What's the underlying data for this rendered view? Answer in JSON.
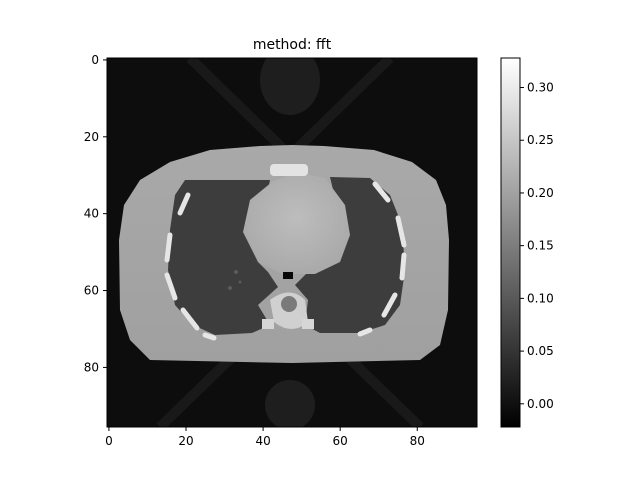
{
  "title": "method: fft",
  "chart_data": {
    "type": "heatmap",
    "title": "method: fft",
    "colormap": "gray",
    "image_shape": [
      96,
      96
    ],
    "image_content": "reconstructed axial chest CT slice: body cross-section with two dark lungs, bright ribs, spine and a bright central heart region",
    "x_ticks": [
      0,
      20,
      40,
      60,
      80
    ],
    "y_ticks": [
      0,
      20,
      40,
      60,
      80
    ],
    "xlim": [
      -0.5,
      95.5
    ],
    "ylim": [
      95.5,
      -0.5
    ],
    "colorbar": {
      "range": [
        -0.022,
        0.328
      ],
      "ticks": [
        "0.30",
        "0.25",
        "0.20",
        "0.15",
        "0.10",
        "0.05",
        "0.00"
      ],
      "tick_values": [
        0.3,
        0.25,
        0.2,
        0.15,
        0.1,
        0.05,
        0.0
      ]
    }
  },
  "colors": {
    "background": "#ffffff",
    "axis": "#000000",
    "colormap_low": "#000000",
    "colormap_high": "#ffffff"
  }
}
